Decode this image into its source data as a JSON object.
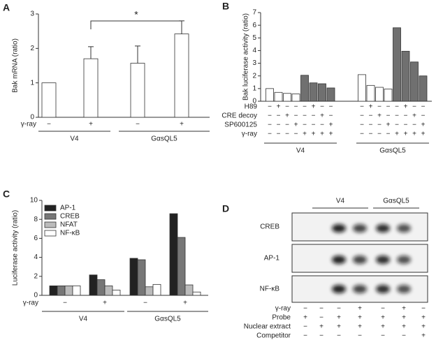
{
  "chart_data": [
    {
      "type": "bar",
      "panel": "A",
      "ylabel": "Bak mRNA (ratio)",
      "values": [
        1,
        1.7,
        1.57,
        2.42
      ],
      "errors": [
        null,
        0.35,
        0.5,
        0.38
      ],
      "color": "#ffffff",
      "ylim": [
        0,
        3
      ],
      "yticks": [
        0,
        1,
        2,
        3
      ],
      "conditions": [
        {
          "label": "γ-ray",
          "signs": [
            "−",
            "+",
            "−",
            "+"
          ]
        }
      ],
      "groups": [
        {
          "label": "V4"
        },
        {
          "label": "GαsQL5"
        }
      ],
      "significance": {
        "label": "*"
      }
    },
    {
      "type": "bar",
      "panel": "B",
      "ylabel": "Bak luciferase activity (ratio)",
      "values": [
        1.0,
        0.7,
        0.62,
        0.58,
        2.05,
        1.45,
        1.38,
        1.05,
        2.1,
        1.25,
        1.1,
        0.97,
        5.8,
        3.95,
        3.1,
        2.0
      ],
      "colors": [
        "#ffffff",
        "#ffffff",
        "#ffffff",
        "#ffffff",
        "#707070",
        "#707070",
        "#707070",
        "#707070",
        "#ffffff",
        "#ffffff",
        "#ffffff",
        "#ffffff",
        "#707070",
        "#707070",
        "#707070",
        "#707070"
      ],
      "ylim": [
        0,
        7
      ],
      "yticks": [
        0,
        1,
        2,
        3,
        4,
        5,
        6,
        7
      ],
      "conditions": [
        {
          "label": "H89",
          "signs": [
            "−",
            "+",
            "−",
            "−",
            "−",
            "+",
            "−",
            "−",
            "−",
            "+",
            "−",
            "−",
            "−",
            "+",
            "−",
            "−"
          ]
        },
        {
          "label": "CRE decoy",
          "signs": [
            "−",
            "−",
            "+",
            "−",
            "−",
            "−",
            "+",
            "−",
            "−",
            "−",
            "+",
            "−",
            "−",
            "−",
            "+",
            "−"
          ]
        },
        {
          "label": "SP600125",
          "signs": [
            "−",
            "−",
            "−",
            "+",
            "−",
            "−",
            "−",
            "+",
            "−",
            "−",
            "−",
            "+",
            "−",
            "−",
            "−",
            "+"
          ]
        },
        {
          "label": "γ-ray",
          "signs": [
            "−",
            "−",
            "−",
            "−",
            "+",
            "+",
            "+",
            "+",
            "−",
            "−",
            "−",
            "−",
            "+",
            "+",
            "+",
            "+"
          ]
        }
      ],
      "groups": [
        {
          "label": "V4"
        },
        {
          "label": "GαsQL5"
        }
      ]
    },
    {
      "type": "grouped_bar",
      "panel": "C",
      "ylabel": "Luciferase activity (ratio)",
      "series": [
        {
          "name": "AP-1",
          "color": "#222222",
          "values": [
            1,
            2.15,
            3.9,
            8.6
          ]
        },
        {
          "name": "CREB",
          "color": "#777777",
          "values": [
            1,
            1.65,
            3.75,
            6.1
          ]
        },
        {
          "name": "NFAT",
          "color": "#bbbbbb",
          "values": [
            1,
            1.0,
            0.9,
            1.1
          ]
        },
        {
          "name": "NF-κB",
          "color": "#ffffff",
          "values": [
            1,
            0.55,
            1.15,
            0.35
          ]
        }
      ],
      "ylim": [
        0,
        10
      ],
      "yticks": [
        0,
        2,
        4,
        6,
        8,
        10
      ],
      "conditions": [
        {
          "label": "γ-ray",
          "signs": [
            "−",
            "+",
            "−",
            "+"
          ]
        }
      ],
      "groups": [
        {
          "label": "V4"
        },
        {
          "label": "GαsQL5"
        }
      ]
    }
  ],
  "gel": {
    "panel": "D",
    "groups": [
      {
        "label": "V4"
      },
      {
        "label": "GαsQL5"
      }
    ],
    "blots": [
      "CREB",
      "AP-1",
      "NF-κB"
    ],
    "conditions": [
      {
        "label": "γ-ray",
        "signs": [
          "−",
          "−",
          "−",
          "+",
          "−",
          "+",
          "−"
        ]
      },
      {
        "label": "Probe",
        "signs": [
          "+",
          "−",
          "+",
          "+",
          "+",
          "+",
          "+"
        ]
      },
      {
        "label": "Nuclear extract",
        "signs": [
          "−",
          "+",
          "+",
          "+",
          "+",
          "+",
          "+"
        ]
      },
      {
        "label": "Competitor",
        "signs": [
          "−",
          "−",
          "−",
          "−",
          "−",
          "−",
          "+"
        ]
      }
    ]
  }
}
